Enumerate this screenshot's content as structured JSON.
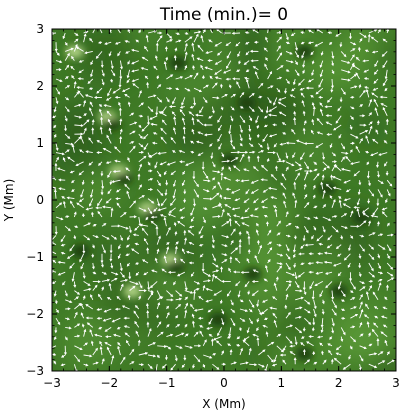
{
  "chart_data": {
    "type": "heatmap",
    "title": "Time (min.)= 0",
    "xlabel": "X (Mm)",
    "ylabel": "Y (Mm)",
    "xlim": [
      -3,
      3
    ],
    "ylim": [
      -3,
      3
    ],
    "x_ticks": [
      "−3",
      "−2",
      "−1",
      "0",
      "1",
      "2",
      "3"
    ],
    "y_ticks": [
      "−3",
      "−2",
      "−1",
      "0",
      "1",
      "2",
      "3"
    ],
    "overlay": "velocity vector field (white arrows)",
    "colors": {
      "background_field": "#3f7a26",
      "dark_field": "#1d3f10",
      "light_field": "#b8d98a",
      "arrows": "#ffffff"
    },
    "features": [
      {
        "x": -1.3,
        "y": -0.2,
        "kind": "bright-dark pair"
      },
      {
        "x": -1.8,
        "y": 0.45,
        "kind": "bright-dark pair"
      },
      {
        "x": -0.9,
        "y": -1.1,
        "kind": "bright-dark pair"
      },
      {
        "x": -1.6,
        "y": -1.6,
        "kind": "bright spot"
      },
      {
        "x": -2.6,
        "y": 2.6,
        "kind": "bright spot"
      },
      {
        "x": -2.0,
        "y": 1.4,
        "kind": "bright-dark pair"
      },
      {
        "x": 0.1,
        "y": 0.7,
        "kind": "dark spot"
      },
      {
        "x": 1.8,
        "y": 0.2,
        "kind": "dark spot"
      },
      {
        "x": -0.8,
        "y": 2.4,
        "kind": "dark spot"
      },
      {
        "x": 1.4,
        "y": 2.6,
        "kind": "dark spot"
      },
      {
        "x": 2.4,
        "y": -0.3,
        "kind": "dark spot"
      },
      {
        "x": 0.5,
        "y": -1.3,
        "kind": "dark spot"
      },
      {
        "x": -0.1,
        "y": -2.1,
        "kind": "dark spot"
      },
      {
        "x": 2.0,
        "y": -1.6,
        "kind": "dark spot"
      },
      {
        "x": 1.4,
        "y": -2.7,
        "kind": "dark spot"
      },
      {
        "x": 0.4,
        "y": 1.7,
        "kind": "dark spot"
      },
      {
        "x": -2.5,
        "y": -0.9,
        "kind": "dark spot"
      }
    ]
  }
}
